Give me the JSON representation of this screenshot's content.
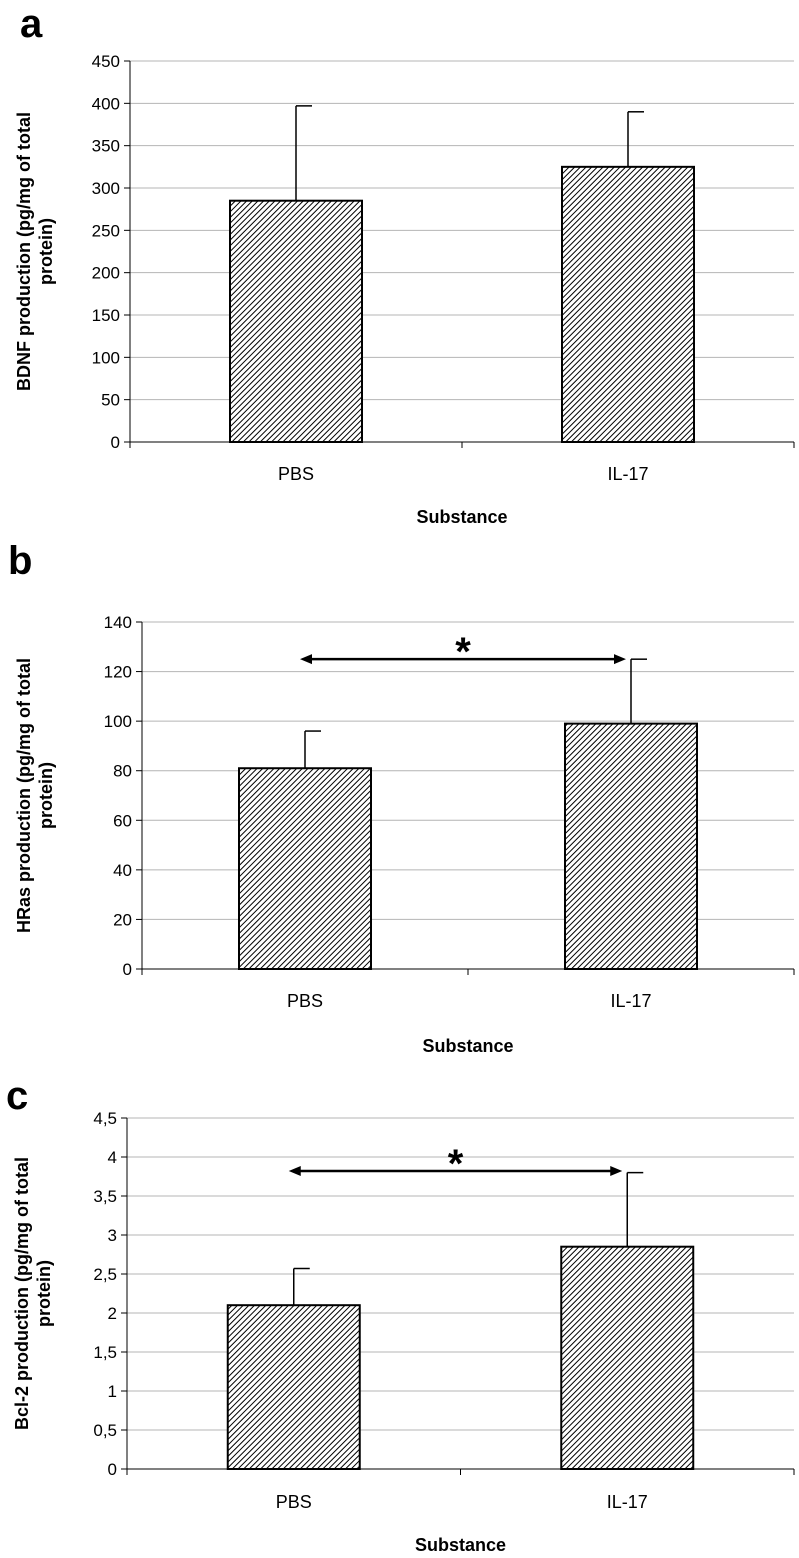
{
  "figure_labels": [
    "a",
    "b",
    "c"
  ],
  "chart_data": [
    {
      "panel": "a",
      "type": "bar",
      "title": "",
      "xlabel": "Substance",
      "ylabel_lines": [
        "BDNF production (pg/mg of total",
        "protein)"
      ],
      "categories": [
        "PBS",
        "IL-17"
      ],
      "values": [
        285,
        325
      ],
      "error_upper": [
        397,
        390
      ],
      "ylim": [
        0,
        450
      ],
      "yticks": [
        0,
        50,
        100,
        150,
        200,
        250,
        300,
        350,
        400,
        450
      ],
      "ytick_labels": [
        "0",
        "50",
        "100",
        "150",
        "200",
        "250",
        "300",
        "350",
        "400",
        "450"
      ],
      "grid": true,
      "significance": null
    },
    {
      "panel": "b",
      "type": "bar",
      "title": "",
      "xlabel": "Substance",
      "ylabel_lines": [
        "HRas production (pg/mg of total",
        "protein)"
      ],
      "categories": [
        "PBS",
        "IL-17"
      ],
      "values": [
        81,
        99
      ],
      "error_upper": [
        96,
        125
      ],
      "ylim": [
        0,
        140
      ],
      "yticks": [
        0,
        20,
        40,
        60,
        80,
        100,
        120,
        140
      ],
      "ytick_labels": [
        "0",
        "20",
        "40",
        "60",
        "80",
        "100",
        "120",
        "140"
      ],
      "grid": true,
      "significance": {
        "marker": "*",
        "value": 125
      }
    },
    {
      "panel": "c",
      "type": "bar",
      "title": "",
      "xlabel": "Substance",
      "ylabel_lines": [
        "Bcl-2 production (pg/mg of total",
        "protein)"
      ],
      "categories": [
        "PBS",
        "IL-17"
      ],
      "values": [
        2.1,
        2.85
      ],
      "error_upper": [
        2.57,
        3.8
      ],
      "ylim": [
        0,
        4.5
      ],
      "yticks": [
        0,
        0.5,
        1,
        1.5,
        2,
        2.5,
        3,
        3.5,
        4,
        4.5
      ],
      "ytick_labels": [
        "0",
        "0,5",
        "1",
        "1,5",
        "2",
        "2,5",
        "3",
        "3,5",
        "4",
        "4,5"
      ],
      "grid": true,
      "significance": {
        "marker": "*",
        "value": 3.82
      }
    }
  ]
}
